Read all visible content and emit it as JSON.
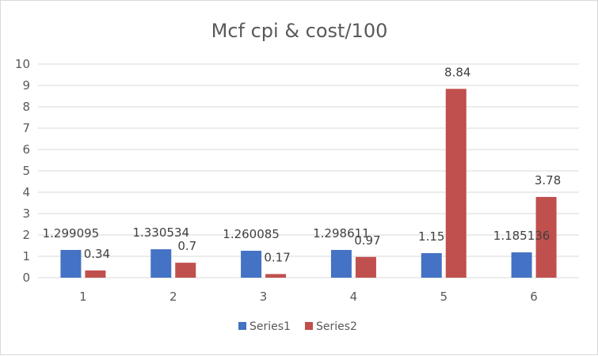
{
  "chart_data": {
    "type": "bar",
    "title": "Mcf cpi & cost/100",
    "xlabel": "",
    "ylabel": "",
    "categories": [
      "1",
      "2",
      "3",
      "4",
      "5",
      "6"
    ],
    "series": [
      {
        "name": "Series1",
        "color": "#4472c4",
        "values": [
          1.299095,
          1.330534,
          1.260085,
          1.298611,
          1.15,
          1.185136
        ],
        "labels": [
          "1.299095",
          "1.330534",
          "1.260085",
          "1.298611",
          "1.15",
          "1.185136"
        ]
      },
      {
        "name": "Series2",
        "color": "#c0504d",
        "values": [
          0.34,
          0.7,
          0.17,
          0.97,
          8.84,
          3.78
        ],
        "labels": [
          "0.34",
          "0.7",
          "0.17",
          "0.97",
          "8.84",
          "3.78"
        ]
      }
    ],
    "ylim": [
      0,
      10
    ],
    "yticks": [
      "0",
      "1",
      "2",
      "3",
      "4",
      "5",
      "6",
      "7",
      "8",
      "9",
      "10"
    ],
    "grid": true,
    "legend": "bottom"
  }
}
